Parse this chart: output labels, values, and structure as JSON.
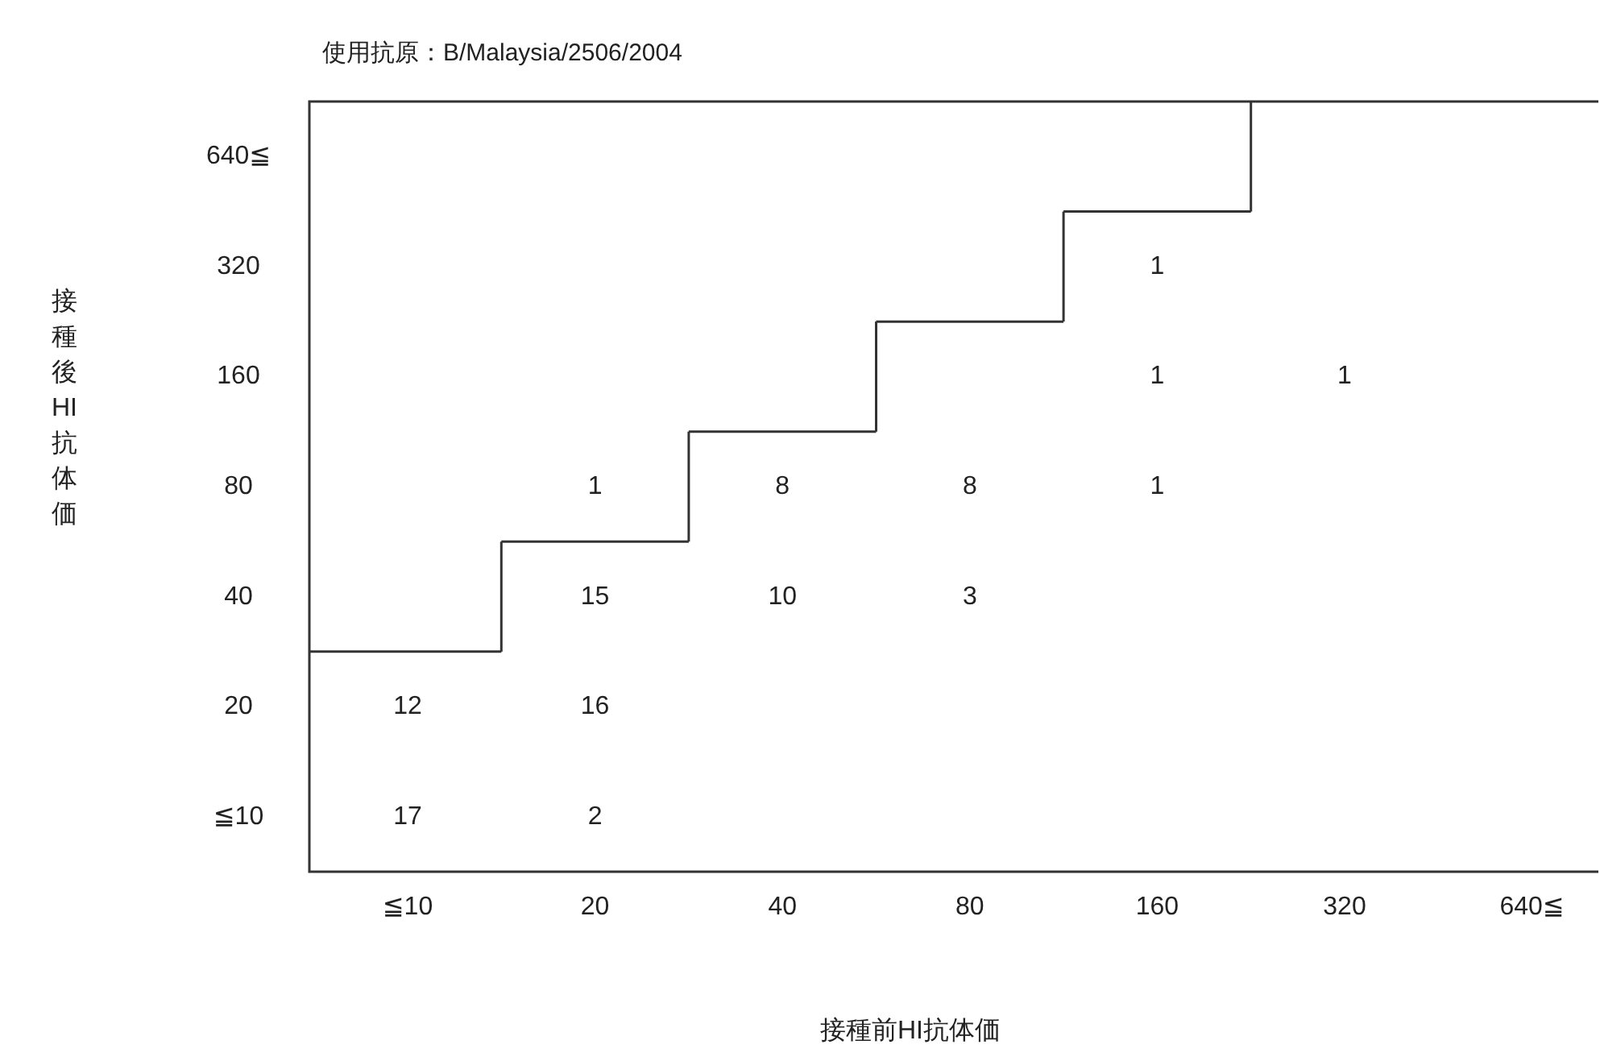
{
  "chart_data": {
    "type": "heatmap",
    "data_labels": true,
    "title": "使用抗原：B/Malaysia/2506/2004",
    "xlabel": "接種前HI抗体価",
    "ylabel": "接種後HI抗体価",
    "categories": [
      "≦10",
      "20",
      "40",
      "80",
      "160",
      "320",
      "640≦"
    ],
    "y_categories": [
      "640≦",
      "320",
      "160",
      "80",
      "40",
      "20",
      "≦10"
    ],
    "cells": [
      [
        null,
        null,
        null,
        null,
        null,
        null,
        null
      ],
      [
        null,
        null,
        null,
        null,
        1,
        null,
        null
      ],
      [
        null,
        null,
        null,
        null,
        1,
        1,
        null
      ],
      [
        null,
        1,
        8,
        8,
        1,
        null,
        null
      ],
      [
        null,
        15,
        10,
        3,
        null,
        null,
        null
      ],
      [
        12,
        16,
        null,
        null,
        null,
        null,
        null
      ],
      [
        17,
        2,
        null,
        null,
        null,
        null,
        null
      ]
    ]
  }
}
